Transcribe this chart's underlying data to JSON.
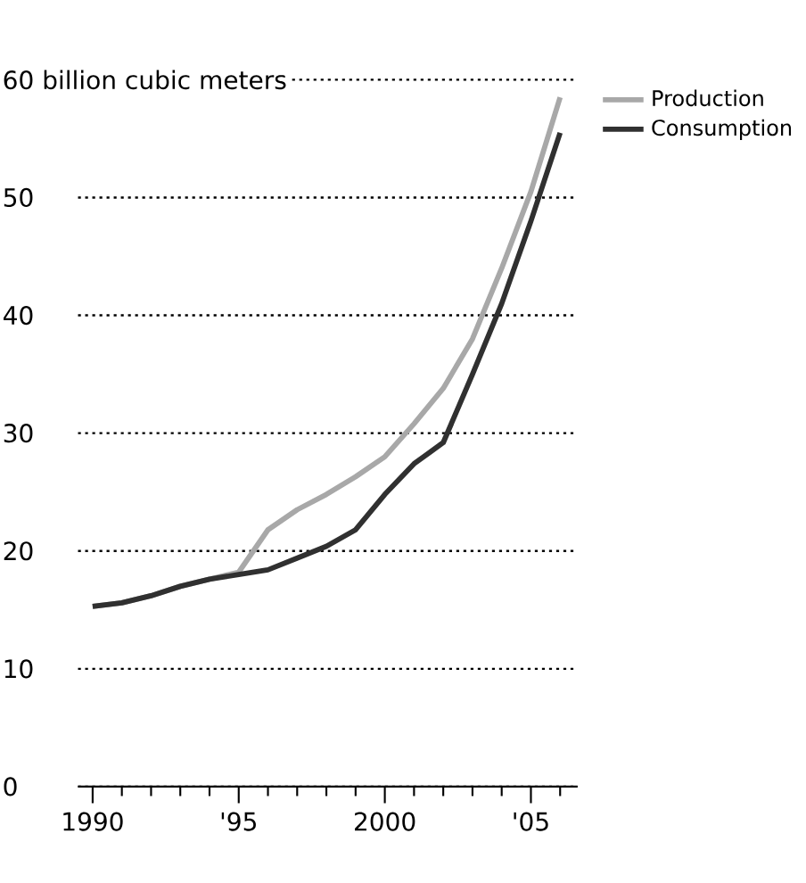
{
  "chart_data": {
    "type": "line",
    "x": [
      1990,
      1991,
      1992,
      1993,
      1994,
      1995,
      1996,
      1997,
      1998,
      1999,
      2000,
      2001,
      2002,
      2003,
      2004,
      2005,
      2006
    ],
    "series": [
      {
        "name": "Production",
        "color": "#a8a8a8",
        "values": [
          15.3,
          15.6,
          16.2,
          17.0,
          17.6,
          18.2,
          21.8,
          23.5,
          24.8,
          26.3,
          28.0,
          30.8,
          33.8,
          38.0,
          44.0,
          50.5,
          58.5
        ]
      },
      {
        "name": "Consumption",
        "color": "#303030",
        "values": [
          15.3,
          15.6,
          16.2,
          17.0,
          17.6,
          18.0,
          18.4,
          19.4,
          20.4,
          21.8,
          24.8,
          27.4,
          29.2,
          35.0,
          41.0,
          48.0,
          55.5
        ]
      }
    ],
    "xlim": [
      1989.5,
      2006.6
    ],
    "xticks": [
      {
        "value": 1990,
        "label": "1990"
      },
      {
        "value": 1991,
        "label": null
      },
      {
        "value": 1992,
        "label": null
      },
      {
        "value": 1993,
        "label": null
      },
      {
        "value": 1994,
        "label": null
      },
      {
        "value": 1995,
        "label": "'95"
      },
      {
        "value": 1996,
        "label": null
      },
      {
        "value": 1997,
        "label": null
      },
      {
        "value": 1998,
        "label": null
      },
      {
        "value": 1999,
        "label": null
      },
      {
        "value": 2000,
        "label": "2000"
      },
      {
        "value": 2001,
        "label": null
      },
      {
        "value": 2002,
        "label": null
      },
      {
        "value": 2003,
        "label": null
      },
      {
        "value": 2004,
        "label": null
      },
      {
        "value": 2005,
        "label": "'05"
      },
      {
        "value": 2006,
        "label": null
      }
    ],
    "ylim": [
      0,
      60
    ],
    "yticks": [
      0,
      10,
      20,
      30,
      40,
      50,
      {
        "value": 60,
        "label": "60 billion cubic meters"
      }
    ],
    "grid": "y",
    "legend": "top right",
    "line_style": "solid",
    "marker": "none"
  }
}
